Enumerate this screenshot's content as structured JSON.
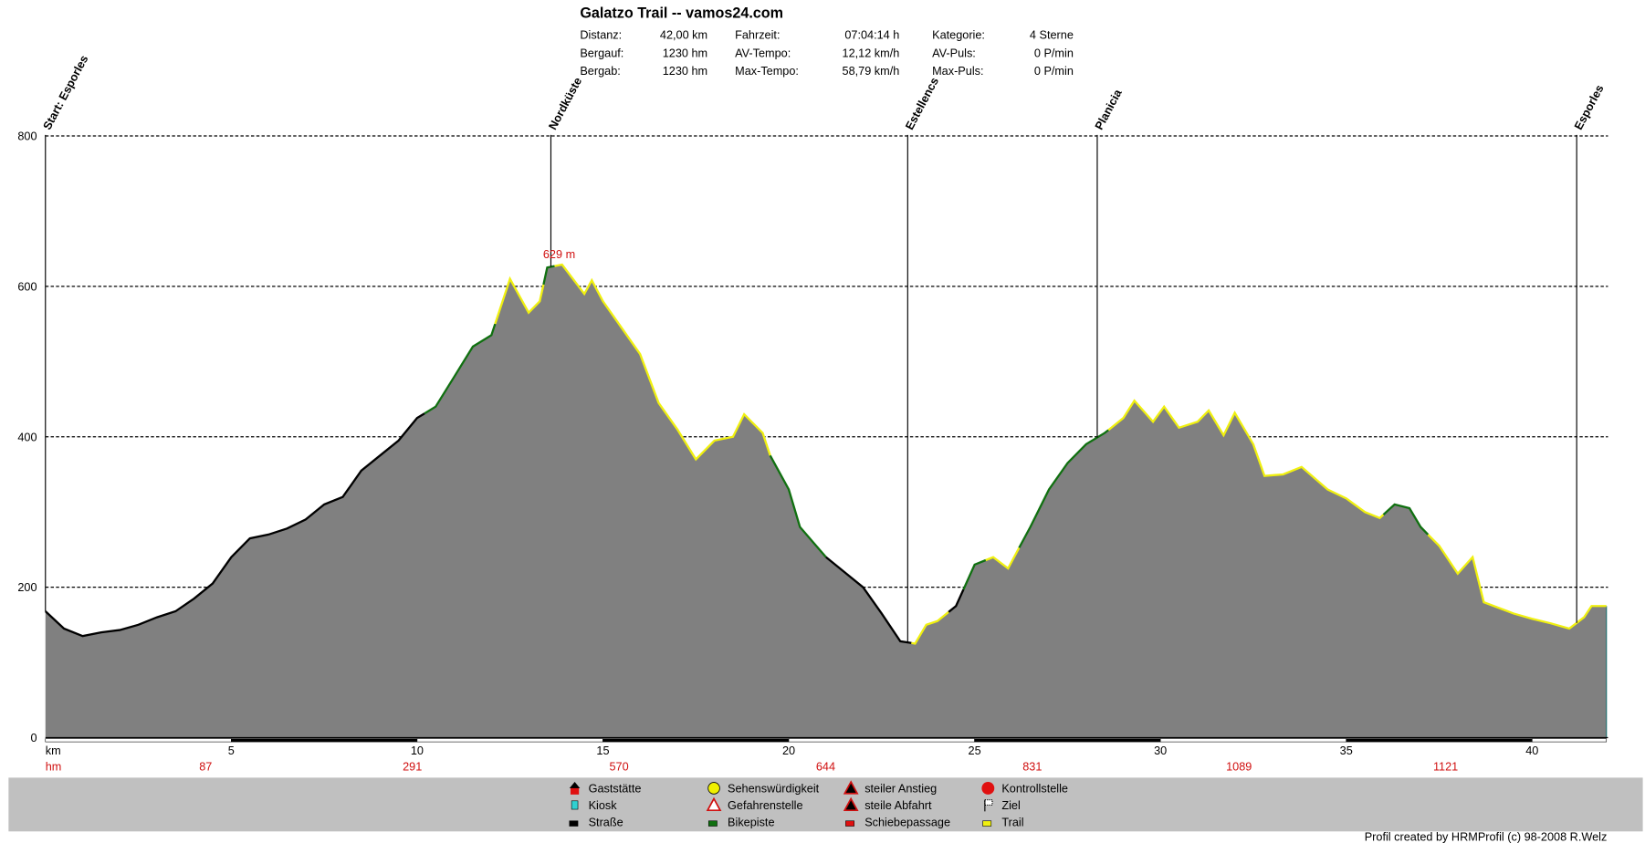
{
  "header": {
    "title": "Galatzo Trail  -- vamos24.com",
    "stats": [
      [
        {
          "label": "Distanz:",
          "value": "42,00 km"
        },
        {
          "label": "Fahrzeit:",
          "value": "07:04:14 h"
        },
        {
          "label": "Kategorie:",
          "value": "4 Sterne"
        }
      ],
      [
        {
          "label": "Bergauf:",
          "value": "1230 hm"
        },
        {
          "label": "AV-Tempo:",
          "value": "12,12 km/h"
        },
        {
          "label": "AV-Puls:",
          "value": "0 P/min"
        }
      ],
      [
        {
          "label": "Bergab:",
          "value": "1230 hm"
        },
        {
          "label": "Max-Tempo:",
          "value": "58,79 km/h"
        },
        {
          "label": "Max-Puls:",
          "value": "0 P/min"
        }
      ]
    ]
  },
  "chart_data": {
    "type": "area",
    "xlabel": "km",
    "hm_label": "hm",
    "xlim": [
      0,
      42
    ],
    "ylim": [
      0,
      800
    ],
    "yticks": [
      0,
      200,
      400,
      600,
      800
    ],
    "xticks": [
      5,
      10,
      15,
      20,
      25,
      30,
      35,
      40
    ],
    "grid": true,
    "hm_values": [
      "87",
      "291",
      "570",
      "644",
      "831",
      "1089",
      "1121"
    ],
    "max_label": "629 m",
    "max_km": 13.9,
    "fill_color": "#808080",
    "profile": [
      [
        0,
        168
      ],
      [
        0.5,
        145
      ],
      [
        1,
        135
      ],
      [
        1.5,
        140
      ],
      [
        2,
        143
      ],
      [
        2.5,
        150
      ],
      [
        3,
        160
      ],
      [
        3.5,
        168
      ],
      [
        4,
        185
      ],
      [
        4.5,
        205
      ],
      [
        5,
        240
      ],
      [
        5.5,
        265
      ],
      [
        6,
        270
      ],
      [
        6.5,
        278
      ],
      [
        7,
        290
      ],
      [
        7.5,
        310
      ],
      [
        8,
        320
      ],
      [
        8.5,
        355
      ],
      [
        9,
        375
      ],
      [
        9.5,
        395
      ],
      [
        10,
        425
      ],
      [
        10.5,
        440
      ],
      [
        11,
        480
      ],
      [
        11.5,
        520
      ],
      [
        12,
        535
      ],
      [
        12.5,
        610
      ],
      [
        13,
        565
      ],
      [
        13.3,
        580
      ],
      [
        13.5,
        625
      ],
      [
        13.9,
        629
      ],
      [
        14.5,
        590
      ],
      [
        14.7,
        608
      ],
      [
        15,
        580
      ],
      [
        15.5,
        545
      ],
      [
        16,
        510
      ],
      [
        16.5,
        445
      ],
      [
        17,
        410
      ],
      [
        17.5,
        370
      ],
      [
        18,
        395
      ],
      [
        18.5,
        400
      ],
      [
        18.8,
        430
      ],
      [
        19.3,
        405
      ],
      [
        19.5,
        375
      ],
      [
        20,
        330
      ],
      [
        20.3,
        280
      ],
      [
        21,
        240
      ],
      [
        22,
        200
      ],
      [
        22.5,
        165
      ],
      [
        23,
        128
      ],
      [
        23.4,
        125
      ],
      [
        23.7,
        150
      ],
      [
        24,
        155
      ],
      [
        24.5,
        175
      ],
      [
        25,
        230
      ],
      [
        25.5,
        240
      ],
      [
        25.9,
        225
      ],
      [
        26.5,
        280
      ],
      [
        27,
        330
      ],
      [
        27.5,
        365
      ],
      [
        28,
        390
      ],
      [
        28.5,
        405
      ],
      [
        29,
        425
      ],
      [
        29.3,
        448
      ],
      [
        29.8,
        420
      ],
      [
        30.1,
        440
      ],
      [
        30.5,
        412
      ],
      [
        31,
        420
      ],
      [
        31.3,
        435
      ],
      [
        31.7,
        402
      ],
      [
        32,
        432
      ],
      [
        32.5,
        390
      ],
      [
        32.8,
        348
      ],
      [
        33.3,
        350
      ],
      [
        33.8,
        360
      ],
      [
        34.5,
        330
      ],
      [
        35,
        318
      ],
      [
        35.5,
        300
      ],
      [
        35.9,
        292
      ],
      [
        36.3,
        310
      ],
      [
        36.7,
        305
      ],
      [
        37,
        280
      ],
      [
        37.5,
        255
      ],
      [
        38,
        218
      ],
      [
        38.4,
        240
      ],
      [
        38.7,
        180
      ],
      [
        39.5,
        165
      ],
      [
        40,
        158
      ],
      [
        40.5,
        152
      ],
      [
        41,
        145
      ],
      [
        41.4,
        160
      ],
      [
        41.6,
        175
      ],
      [
        42,
        175
      ]
    ],
    "surface_segments": [
      {
        "from": 0,
        "to": 10.2,
        "type": "Straße"
      },
      {
        "from": 10.2,
        "to": 12.1,
        "type": "Bikepiste"
      },
      {
        "from": 12.1,
        "to": 13.4,
        "type": "Trail"
      },
      {
        "from": 13.4,
        "to": 13.7,
        "type": "Bikepiste"
      },
      {
        "from": 13.7,
        "to": 19.5,
        "type": "Trail"
      },
      {
        "from": 19.5,
        "to": 21,
        "type": "Bikepiste"
      },
      {
        "from": 21,
        "to": 23.3,
        "type": "Straße"
      },
      {
        "from": 23.3,
        "to": 24.3,
        "type": "Trail"
      },
      {
        "from": 24.3,
        "to": 24.7,
        "type": "Straße"
      },
      {
        "from": 24.7,
        "to": 25.3,
        "type": "Bikepiste"
      },
      {
        "from": 25.3,
        "to": 26.2,
        "type": "Trail"
      },
      {
        "from": 26.2,
        "to": 28.6,
        "type": "Bikepiste"
      },
      {
        "from": 28.6,
        "to": 36,
        "type": "Trail"
      },
      {
        "from": 36,
        "to": 37.2,
        "type": "Bikepiste"
      },
      {
        "from": 37.2,
        "to": 42,
        "type": "Trail"
      }
    ],
    "surface_colors": {
      "Straße": "#000000",
      "Bikepiste": "#107010",
      "Trail": "#f0f010"
    },
    "waypoints": [
      {
        "km": 0,
        "label": "Start: Esporles"
      },
      {
        "km": 13.6,
        "label": "Nordküste"
      },
      {
        "km": 23.2,
        "label": "Estellencs"
      },
      {
        "km": 28.3,
        "label": "Planicia"
      },
      {
        "km": 41.2,
        "label": "Esporles"
      }
    ]
  },
  "legend": {
    "items": [
      {
        "label": "Gaststätte",
        "icon": "house-icon"
      },
      {
        "label": "Kiosk",
        "icon": "cup-icon"
      },
      {
        "label": "Straße",
        "icon": "black-square-icon"
      },
      {
        "label": "Sehenswürdigkeit",
        "icon": "smiley-icon"
      },
      {
        "label": "Gefahrenstelle",
        "icon": "warning-triangle-icon"
      },
      {
        "label": "Bikepiste",
        "icon": "green-square-icon"
      },
      {
        "label": "steiler Anstieg",
        "icon": "steep-up-icon"
      },
      {
        "label": "steile Abfahrt",
        "icon": "steep-down-icon"
      },
      {
        "label": "Schiebepassage",
        "icon": "red-square-icon"
      },
      {
        "label": "Kontrollstelle",
        "icon": "stop-icon"
      },
      {
        "label": "Ziel",
        "icon": "finish-flag-icon"
      },
      {
        "label": "Trail",
        "icon": "yellow-square-icon"
      }
    ]
  },
  "footer": "Profil created by HRMProfil (c) 98-2008 R.Welz"
}
